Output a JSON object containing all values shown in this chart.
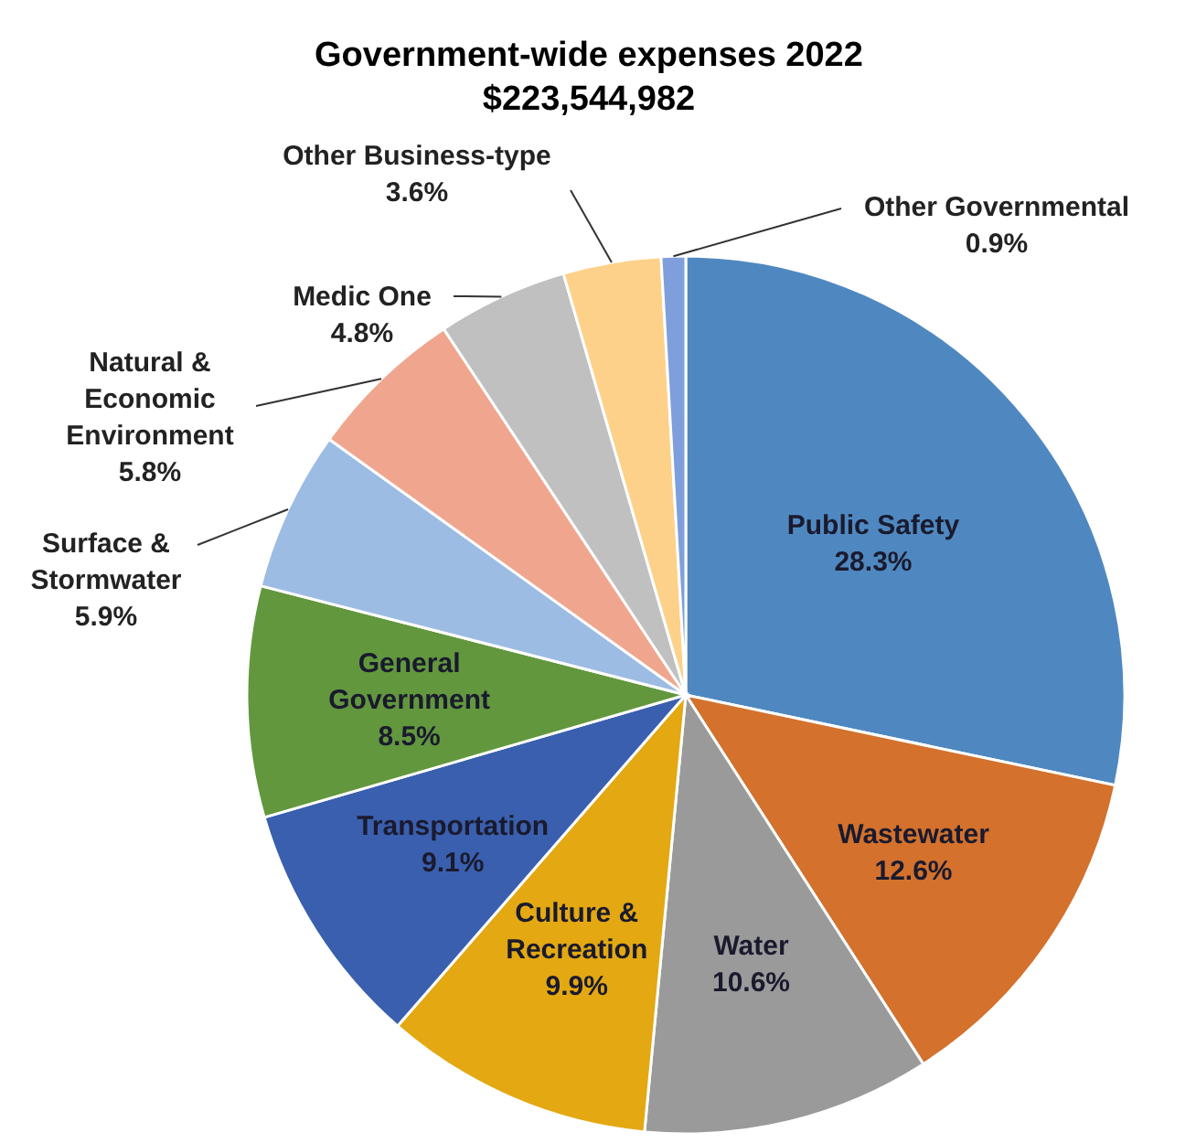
{
  "chart_data": {
    "type": "pie",
    "title": "Government-wide expenses 2022",
    "subtitle": "$223,544,982",
    "categories": [
      "Public Safety",
      "Wastewater",
      "Water",
      "Culture & Recreation",
      "Transportation",
      "General Government",
      "Surface & Stormwater",
      "Natural & Economic Environment",
      "Medic One",
      "Other Business-type",
      "Other Governmental"
    ],
    "values": [
      28.3,
      12.6,
      10.6,
      9.9,
      9.1,
      8.5,
      5.9,
      5.8,
      4.8,
      3.6,
      0.9
    ],
    "value_labels": [
      "28.3%",
      "12.6%",
      "10.6%",
      "9.9%",
      "9.1%",
      "8.5%",
      "5.9%",
      "5.8%",
      "4.8%",
      "3.6%",
      "0.9%"
    ],
    "colors": [
      "#4f88c0",
      "#d3712d",
      "#9a9a9a",
      "#e3a812",
      "#3a5fae",
      "#62973e",
      "#9dbce3",
      "#f0a68e",
      "#c0c0c0",
      "#fdd18a",
      "#7e9fdb"
    ]
  }
}
